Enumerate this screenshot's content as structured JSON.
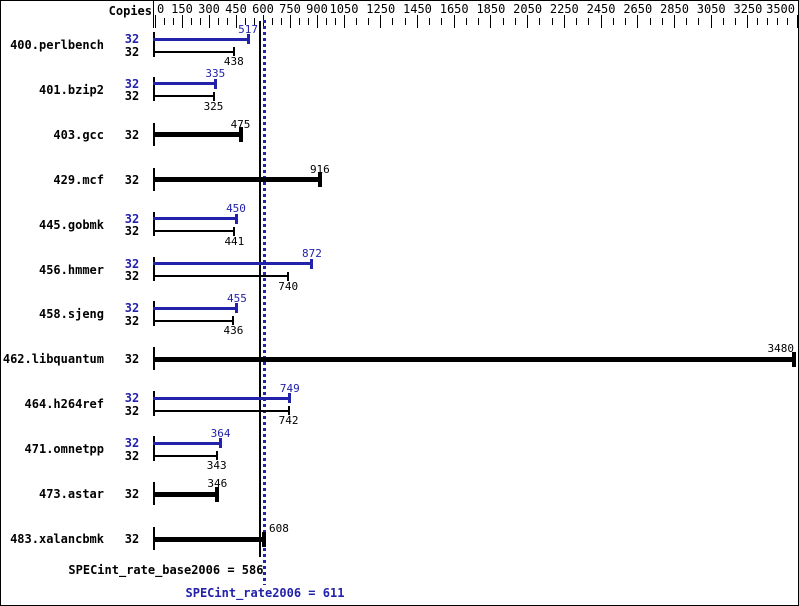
{
  "header": {
    "copies_label": "Copies"
  },
  "colors": {
    "peak_blue": "#2222aa",
    "base_black": "#000000",
    "background": "#ffffff"
  },
  "chart_data": {
    "type": "bar",
    "orientation": "horizontal",
    "title": "",
    "xlabel": "",
    "ylabel": "",
    "axis": {
      "position": "top",
      "major_ticks": [
        0,
        150,
        300,
        450,
        600,
        750,
        900,
        1050,
        1250,
        1450,
        1650,
        1850,
        2050,
        2250,
        2450,
        2650,
        2850,
        3050,
        3250,
        3500
      ],
      "minor_ticks_per_gap": 2,
      "minor_ticks_last_gap": 4,
      "xlim": [
        0,
        3500
      ],
      "scale_note": "nonlinear: step 150 up to 1050, step 200 up to 3250, step 250 to 3500, equal-ish pixel spacing"
    },
    "series_legend": {
      "peak": "SPECint_rate2006 (blue)",
      "base": "SPECint_rate_base2006 (black)"
    },
    "benchmarks": [
      {
        "name": "400.perlbench",
        "copies": 32,
        "peak": 517,
        "base": 438
      },
      {
        "name": "401.bzip2",
        "copies": 32,
        "peak": 335,
        "base": 325
      },
      {
        "name": "403.gcc",
        "copies": 32,
        "peak": null,
        "base": 475
      },
      {
        "name": "429.mcf",
        "copies": 32,
        "peak": null,
        "base": 916
      },
      {
        "name": "445.gobmk",
        "copies": 32,
        "peak": 450,
        "base": 441
      },
      {
        "name": "456.hmmer",
        "copies": 32,
        "peak": 872,
        "base": 740
      },
      {
        "name": "458.sjeng",
        "copies": 32,
        "peak": 455,
        "base": 436
      },
      {
        "name": "462.libquantum",
        "copies": 32,
        "peak": null,
        "base": 3480
      },
      {
        "name": "464.h264ref",
        "copies": 32,
        "peak": 749,
        "base": 742
      },
      {
        "name": "471.omnetpp",
        "copies": 32,
        "peak": 364,
        "base": 343
      },
      {
        "name": "473.astar",
        "copies": 32,
        "peak": null,
        "base": 346
      },
      {
        "name": "483.xalancbmk",
        "copies": 32,
        "peak": null,
        "base": 608
      }
    ],
    "reference_lines": [
      {
        "name": "base_mean",
        "value": 586,
        "style": "solid",
        "color": "#000000",
        "label": "SPECint_rate_base2006 = 586"
      },
      {
        "name": "peak_mean",
        "value": 611,
        "style": "dotted",
        "color": "#2222aa",
        "label": "SPECint_rate2006 = 611"
      }
    ]
  },
  "summary": {
    "base_label": "SPECint_rate_base2006 = 586",
    "peak_label": "SPECint_rate2006 = 611"
  }
}
